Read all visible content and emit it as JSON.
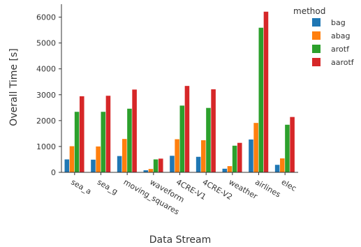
{
  "chart_data": {
    "type": "bar",
    "categories": [
      "sea_a",
      "sea_g",
      "moving_squares",
      "waveform",
      "4CRE-V1",
      "4CRE-V2",
      "weather",
      "airlines",
      "elec"
    ],
    "series": [
      {
        "name": "bag",
        "values": [
          500,
          490,
          630,
          80,
          640,
          600,
          140,
          1270,
          290
        ]
      },
      {
        "name": "abag",
        "values": [
          1010,
          1000,
          1290,
          130,
          1280,
          1240,
          240,
          1910,
          540
        ]
      },
      {
        "name": "arotf",
        "values": [
          2340,
          2340,
          2460,
          500,
          2580,
          2490,
          1030,
          5590,
          1840
        ]
      },
      {
        "name": "aarotf",
        "values": [
          2940,
          2960,
          3200,
          530,
          3340,
          3210,
          1140,
          6210,
          2140
        ]
      }
    ],
    "colors": [
      "#1f77b4",
      "#ff7f0e",
      "#2ca02c",
      "#d62728"
    ],
    "title": "",
    "xlabel": "Data Stream",
    "ylabel": "Overall Time [s]",
    "ylim": [
      0,
      6500
    ],
    "yticks": [
      0,
      1000,
      2000,
      3000,
      4000,
      5000,
      6000
    ],
    "legend_title": "method",
    "legend_position": "right",
    "grid": false
  }
}
